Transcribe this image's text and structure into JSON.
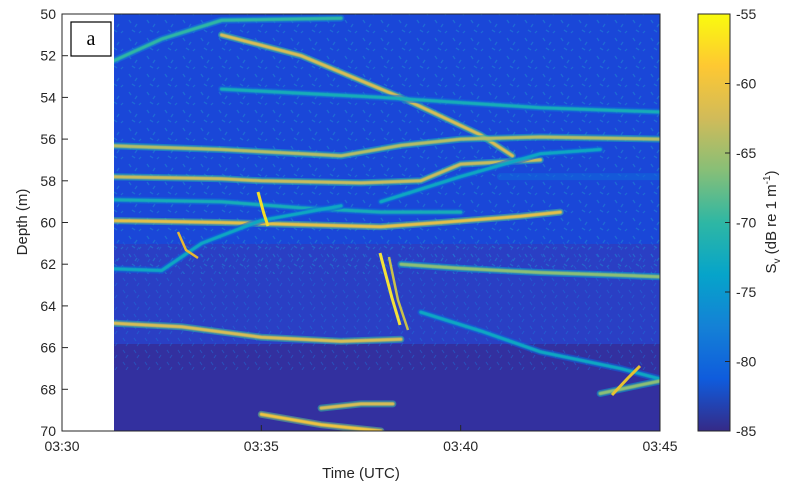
{
  "chart_data": {
    "type": "heatmap",
    "panel_label": "a",
    "xlabel": "Time (UTC)",
    "ylabel": "Depth (m)",
    "colorbar_label_main": "S",
    "colorbar_label_sub": "v",
    "colorbar_label_rest": " (dB re 1 m",
    "colorbar_label_sup": "-1",
    "colorbar_label_close": ")",
    "colormap": "parula",
    "xlim": [
      "03:30",
      "03:45"
    ],
    "ylim": [
      50,
      70
    ],
    "y_reversed": true,
    "clim": [
      -85,
      -55
    ],
    "data_start": "03:31",
    "x_ticks": [
      "03:30",
      "03:35",
      "03:40",
      "03:45"
    ],
    "y_ticks": [
      50,
      52,
      54,
      56,
      58,
      60,
      62,
      64,
      66,
      68,
      70
    ],
    "colorbar_ticks": [
      -55,
      -60,
      -65,
      -70,
      -75,
      -80,
      -85
    ],
    "background_level": -82,
    "traces": [
      {
        "points": [
          [
            "03:31",
            52.5
          ],
          [
            "03:32.5",
            51.2
          ],
          [
            "03:34",
            50.3
          ],
          [
            "03:37",
            50.2
          ]
        ],
        "level": -70
      },
      {
        "points": [
          [
            "03:34",
            51.0
          ],
          [
            "03:36",
            52.0
          ],
          [
            "03:38.5",
            54.0
          ],
          [
            "03:40.5",
            55.8
          ],
          [
            "03:41.3",
            56.8
          ]
        ],
        "level": -62
      },
      {
        "points": [
          [
            "03:34",
            53.6
          ],
          [
            "03:38",
            54.0
          ],
          [
            "03:42",
            54.5
          ],
          [
            "03:45",
            54.7
          ]
        ],
        "level": -72
      },
      {
        "points": [
          [
            "03:31",
            56.3
          ],
          [
            "03:34",
            56.5
          ],
          [
            "03:37",
            56.8
          ],
          [
            "03:38.5",
            56.3
          ],
          [
            "03:40",
            56.0
          ],
          [
            "03:42",
            55.9
          ],
          [
            "03:45",
            56.0
          ]
        ],
        "level": -64
      },
      {
        "points": [
          [
            "03:31",
            57.8
          ],
          [
            "03:34",
            57.9
          ],
          [
            "03:35",
            58.0
          ],
          [
            "03:37.5",
            58.1
          ],
          [
            "03:39",
            58.0
          ],
          [
            "03:40",
            57.2
          ],
          [
            "03:42",
            57.0
          ]
        ],
        "level": -63
      },
      {
        "points": [
          [
            "03:41",
            57.8
          ],
          [
            "03:45",
            57.8
          ]
        ],
        "level": -72
      },
      {
        "points": [
          [
            "03:31",
            58.9
          ],
          [
            "03:34",
            59.0
          ],
          [
            "03:36",
            59.3
          ],
          [
            "03:38",
            59.5
          ],
          [
            "03:40",
            59.5
          ]
        ],
        "level": -72
      },
      {
        "points": [
          [
            "03:31",
            59.9
          ],
          [
            "03:34",
            60.0
          ],
          [
            "03:36",
            60.1
          ],
          [
            "03:38",
            60.2
          ],
          [
            "03:39.5",
            60.0
          ],
          [
            "03:41.5",
            59.7
          ],
          [
            "03:42.5",
            59.5
          ]
        ],
        "level": -61
      },
      {
        "points": [
          [
            "03:31",
            62.2
          ],
          [
            "03:32.5",
            62.3
          ],
          [
            "03:33.5",
            61.0
          ],
          [
            "03:35",
            59.9
          ],
          [
            "03:37",
            59.2
          ]
        ],
        "level": -73
      },
      {
        "points": [
          [
            "03:38.5",
            62.0
          ],
          [
            "03:40",
            62.2
          ],
          [
            "03:42",
            62.4
          ],
          [
            "03:45",
            62.6
          ]
        ],
        "level": -66
      },
      {
        "points": [
          [
            "03:31",
            64.8
          ],
          [
            "03:33",
            65.0
          ],
          [
            "03:35",
            65.5
          ],
          [
            "03:37",
            65.7
          ],
          [
            "03:38.5",
            65.6
          ]
        ],
        "level": -62
      },
      {
        "points": [
          [
            "03:39",
            64.3
          ],
          [
            "03:40.5",
            65.2
          ],
          [
            "03:42",
            66.2
          ],
          [
            "03:44",
            67.0
          ],
          [
            "03:45",
            67.5
          ]
        ],
        "level": -73
      },
      {
        "points": [
          [
            "03:35",
            69.2
          ],
          [
            "03:36.5",
            69.7
          ],
          [
            "03:38",
            70.0
          ]
        ],
        "level": -60
      },
      {
        "points": [
          [
            "03:36.5",
            68.9
          ],
          [
            "03:37.5",
            68.7
          ],
          [
            "03:38.3",
            68.7
          ]
        ],
        "level": -62
      },
      {
        "points": [
          [
            "03:38",
            59.0
          ],
          [
            "03:40",
            57.8
          ],
          [
            "03:42",
            56.7
          ],
          [
            "03:43.5",
            56.5
          ]
        ],
        "level": -73
      },
      {
        "points": [
          [
            "03:43.5",
            68.2
          ],
          [
            "03:44.5",
            67.8
          ],
          [
            "03:45",
            67.6
          ]
        ],
        "level": -66
      }
    ]
  }
}
